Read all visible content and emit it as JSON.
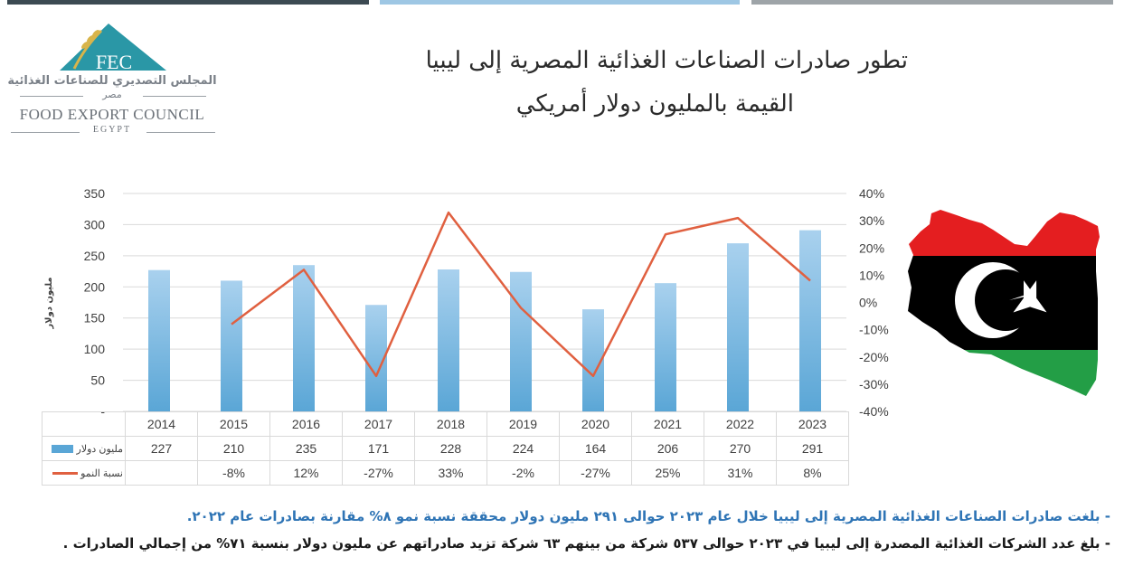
{
  "logo": {
    "abbr": "FEC",
    "arabic_name": "المجلس التصديري للصناعات الغذائية",
    "arabic_country": "مصر",
    "english_name": "FOOD EXPORT COUNCIL",
    "english_country": "EGYPT"
  },
  "title": {
    "line1": "تطور صادرات الصناعات الغذائية المصرية إلى ليبيا",
    "line2": "القيمة بالمليون دولار أمريكي"
  },
  "colors": {
    "bar": "#5aa6d6",
    "bar_light": "#a9d1ee",
    "line": "#e06040",
    "grid": "#d9d9d9",
    "flag_red": "#e41e20",
    "flag_black": "#000000",
    "flag_green": "#239e46"
  },
  "chart_data": {
    "type": "bar",
    "categories": [
      "2014",
      "2015",
      "2016",
      "2017",
      "2018",
      "2019",
      "2020",
      "2021",
      "2022",
      "2023"
    ],
    "series": [
      {
        "name": "مليون دولار",
        "type": "bar",
        "axis": "left",
        "values": [
          227,
          210,
          235,
          171,
          228,
          224,
          164,
          206,
          270,
          291
        ]
      },
      {
        "name": "نسبة النمو",
        "type": "line",
        "axis": "right",
        "values": [
          null,
          -8,
          12,
          -27,
          33,
          -2,
          -27,
          25,
          31,
          8
        ]
      }
    ],
    "ylabel": "مليون دولار",
    "ylim": [
      0,
      350
    ],
    "yticks": [
      "-",
      "50",
      "100",
      "150",
      "200",
      "250",
      "300",
      "350"
    ],
    "y2lim": [
      -40,
      40
    ],
    "y2ticks": [
      "-40%",
      "-30%",
      "-20%",
      "-10%",
      "0%",
      "10%",
      "20%",
      "30%",
      "40%"
    ],
    "table_rows": {
      "values": [
        "227",
        "210",
        "235",
        "171",
        "228",
        "224",
        "164",
        "206",
        "270",
        "291"
      ],
      "growth": [
        "",
        "-8%",
        "12%",
        "-27%",
        "33%",
        "-2%",
        "-27%",
        "25%",
        "31%",
        "8%"
      ]
    },
    "grid": true,
    "legend": "data-table"
  },
  "notes": {
    "line1": "- بلغت صادرات الصناعات الغذائية المصرية إلى ليبيا خلال عام ٢٠٢٣ حوالى ٢٩١ مليون دولار محققة نسبة نمو ٨% مقارنة بصادرات عام ٢٠٢٢.",
    "line2": "- بلغ عدد الشركات الغذائية المصدرة إلى ليبيا في ٢٠٢٣ حوالى ٥٣٧ شركة من بينهم ٦٣ شركة تزيد صادراتهم عن مليون دولار بنسبة ٧١% من إجمالي الصادرات ."
  }
}
